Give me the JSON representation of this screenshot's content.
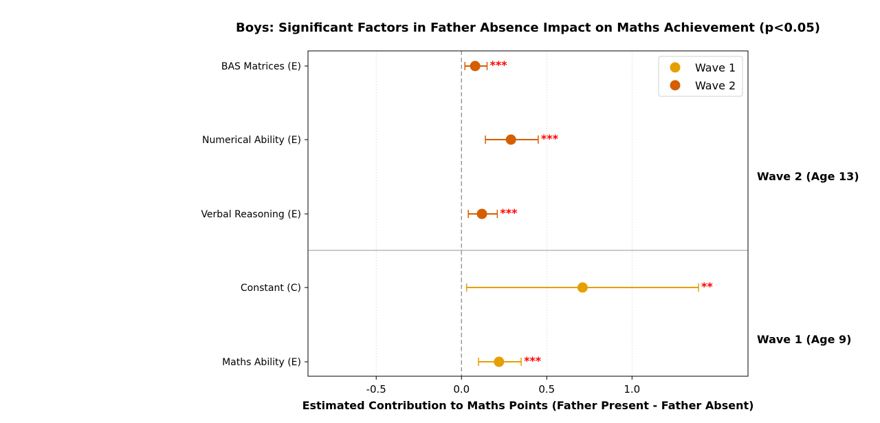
{
  "chart_data": {
    "type": "scatter",
    "subtype": "forest-plot",
    "title": "Boys: Significant Factors in Father Absence Impact on Maths Achievement (p<0.05)",
    "xlabel": "Estimated Contribution to Maths Points (Father Present - Father Absent)",
    "ylabel": "",
    "xlim": [
      -0.9,
      1.68
    ],
    "xticks": [
      -0.5,
      0.0,
      0.5,
      1.0
    ],
    "xtick_labels": [
      "-0.5",
      "0.0",
      "0.5",
      "1.0"
    ],
    "grid": "x-dotted",
    "reference_line": 0.0,
    "legend_position": "top-right",
    "legend": [
      {
        "name": "Wave 1",
        "color": "#e69f00"
      },
      {
        "name": "Wave 2",
        "color": "#d55e00"
      }
    ],
    "groups": [
      {
        "label": "Wave 2 (Age 13)",
        "series": "Wave 2"
      },
      {
        "label": "Wave 1 (Age 9)",
        "series": "Wave 1"
      }
    ],
    "points": [
      {
        "label": "BAS Matrices (E)",
        "series": "Wave 2",
        "estimate": 0.08,
        "ci_low": 0.02,
        "ci_high": 0.15,
        "sig": "***"
      },
      {
        "label": "Numerical Ability (E)",
        "series": "Wave 2",
        "estimate": 0.29,
        "ci_low": 0.14,
        "ci_high": 0.45,
        "sig": "***"
      },
      {
        "label": "Verbal Reasoning (E)",
        "series": "Wave 2",
        "estimate": 0.12,
        "ci_low": 0.04,
        "ci_high": 0.21,
        "sig": "***"
      },
      {
        "label": "Constant (C)",
        "series": "Wave 1",
        "estimate": 0.71,
        "ci_low": 0.03,
        "ci_high": 1.39,
        "sig": "**"
      },
      {
        "label": "Maths Ability (E)",
        "series": "Wave 1",
        "estimate": 0.22,
        "ci_low": 0.1,
        "ci_high": 0.35,
        "sig": "***"
      }
    ]
  }
}
